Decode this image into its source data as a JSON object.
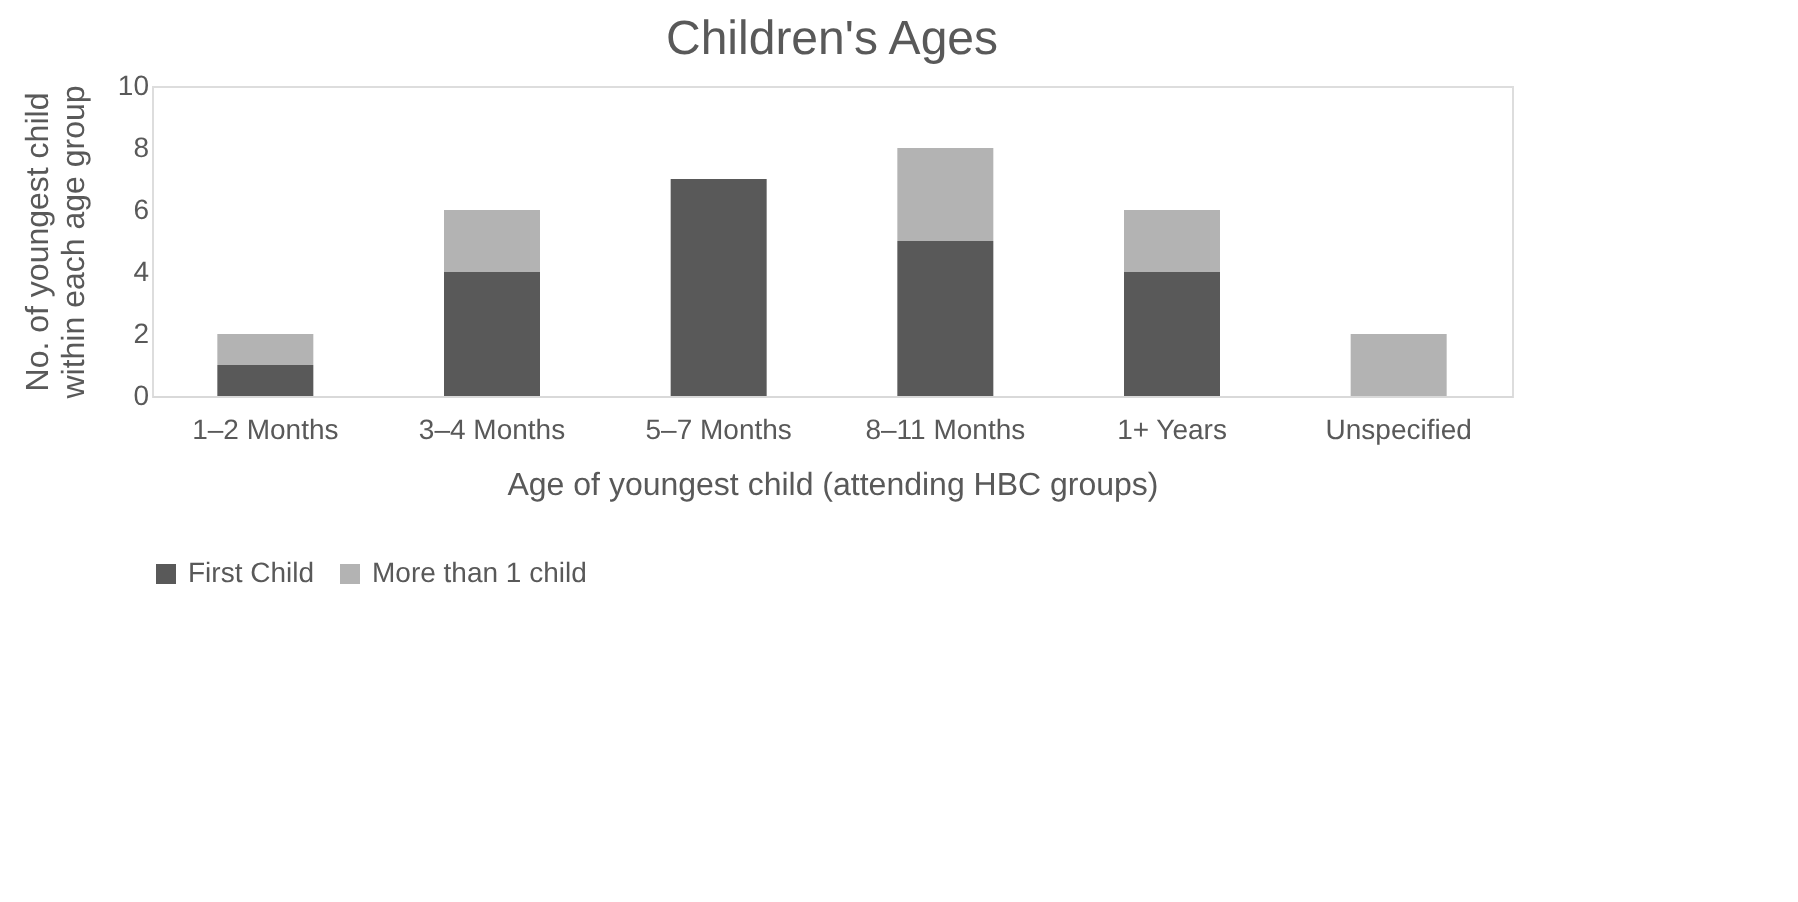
{
  "chart_data": {
    "type": "bar",
    "stacked": true,
    "title": "Children's Ages",
    "xlabel": "Age of youngest child (attending HBC groups)",
    "ylabel": "No. of youngest child within each age group",
    "categories": [
      "1–2 Months",
      "3–4 Months",
      "5–7 Months",
      "8–11 Months",
      "1+ Years",
      "Unspecified"
    ],
    "series": [
      {
        "name": "First Child",
        "color": "#595959",
        "values": [
          1,
          4,
          7,
          5,
          4,
          0
        ]
      },
      {
        "name": "More than 1 child",
        "color": "#b3b3b3",
        "values": [
          1,
          2,
          0,
          3,
          2,
          2
        ]
      }
    ],
    "ylim": [
      0,
      10
    ],
    "yticks": [
      0,
      2,
      4,
      6,
      8,
      10
    ],
    "grid": false,
    "legend": "bottom"
  }
}
